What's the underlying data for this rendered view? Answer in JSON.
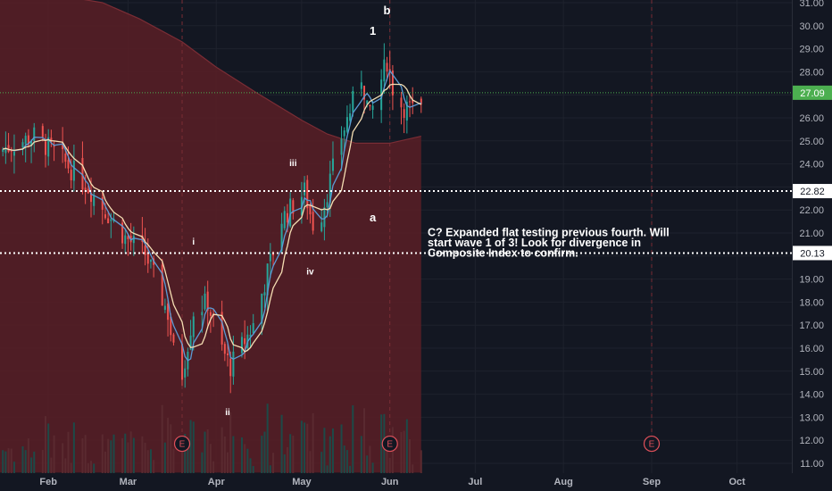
{
  "chart_data": {
    "type": "candlestick",
    "y_axis": {
      "ticks": [
        "31.00",
        "30.00",
        "29.00",
        "28.00",
        "27.00",
        "26.00",
        "25.00",
        "24.00",
        "23.00",
        "22.00",
        "21.00",
        "20.00",
        "19.00",
        "18.00",
        "17.00",
        "16.00",
        "15.00",
        "14.00",
        "13.00",
        "12.00",
        "11.00"
      ],
      "ylim": [
        10.6,
        31.4
      ]
    },
    "x_axis": {
      "labels": [
        "Feb",
        "Mar",
        "Apr",
        "May",
        "Jun",
        "Jul",
        "Aug",
        "Sep",
        "Oct"
      ]
    },
    "price_tags": [
      {
        "value": "27.09",
        "price": 27.09,
        "bg": "#4caf50",
        "fg": "#ffffff",
        "line": "dotted-green"
      },
      {
        "value": "22.82",
        "price": 22.82,
        "bg": "#ffffff",
        "fg": "#131722",
        "line": "dotted-white"
      },
      {
        "value": "20.13",
        "price": 20.13,
        "bg": "#ffffff",
        "fg": "#131722",
        "line": "dotted-white"
      }
    ],
    "wave_labels": [
      {
        "text": "b",
        "date": "2023-05-31",
        "price": 30.5
      },
      {
        "text": "1",
        "date": "2023-05-26",
        "price": 29.6
      },
      {
        "text": "iii",
        "date": "2023-04-28",
        "price": 23.9
      },
      {
        "text": "a",
        "date": "2023-05-26",
        "price": 21.5
      },
      {
        "text": "i",
        "date": "2023-03-24",
        "price": 20.5
      },
      {
        "text": "iv",
        "date": "2023-05-04",
        "price": 19.2
      },
      {
        "text": "ii",
        "date": "2023-04-05",
        "price": 13.1
      }
    ],
    "note": [
      "C?  Expanded flat testing previous fourth.  Will",
      "start wave 1 of 3!  Look for divergence in",
      "Composite Index to confirm."
    ],
    "earnings_markers": [
      "E",
      "E",
      "E"
    ],
    "colors": {
      "up": "#26a69a",
      "down": "#ef5350",
      "ma_fast": "#5b9bd5",
      "ma_slow": "#f5deb3",
      "shaded_area": "#5a1f26",
      "background": "#131722"
    }
  }
}
